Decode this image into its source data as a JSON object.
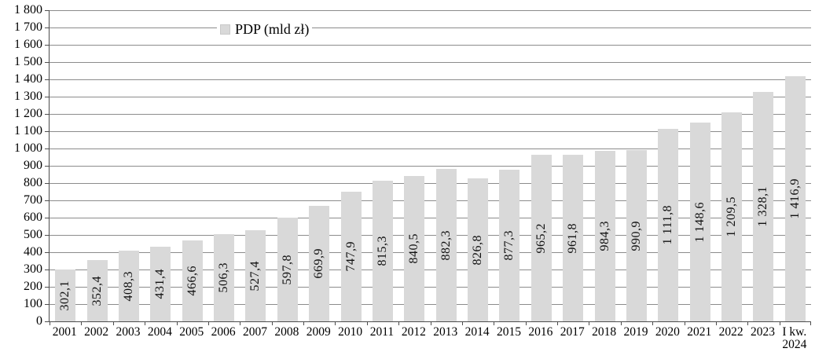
{
  "legend": {
    "label": "PDP (mld zł)"
  },
  "chart_data": {
    "type": "bar",
    "title": "",
    "legend": "PDP (mld zł)",
    "legend_position": "inside-top-left",
    "grid": true,
    "categories": [
      "2001",
      "2002",
      "2003",
      "2004",
      "2005",
      "2006",
      "2007",
      "2008",
      "2009",
      "2010",
      "2011",
      "2012",
      "2013",
      "2014",
      "2015",
      "2016",
      "2017",
      "2018",
      "2019",
      "2020",
      "2021",
      "2022",
      "2023",
      "I kw.\n2024"
    ],
    "values": [
      302.1,
      352.4,
      408.3,
      431.4,
      466.6,
      506.3,
      527.4,
      597.8,
      669.9,
      747.9,
      815.3,
      840.5,
      882.3,
      826.8,
      877.3,
      965.2,
      961.8,
      984.3,
      990.9,
      1111.8,
      1148.6,
      1209.5,
      1328.1,
      1416.9
    ],
    "bar_labels": [
      "302,1",
      "352,4",
      "408,3",
      "431,4",
      "466,6",
      "506,3",
      "527,4",
      "597,8",
      "669,9",
      "747,9",
      "815,3",
      "840,5",
      "882,3",
      "826,8",
      "877,3",
      "965,2",
      "961,8",
      "984,3",
      "990,9",
      "1 111,8",
      "1 148,6",
      "1 209,5",
      "1 328,1",
      "1 416,9"
    ],
    "xlabel": "",
    "ylabel": "",
    "ylim": [
      0,
      1800
    ],
    "y_tick_step": 100,
    "y_tick_labels": [
      "0",
      "100",
      "200",
      "300",
      "400",
      "500",
      "600",
      "700",
      "800",
      "900",
      "1 000",
      "1 100",
      "1 200",
      "1 300",
      "1 400",
      "1 500",
      "1 600",
      "1 700",
      "1 800"
    ],
    "colors": {
      "bar": "#d9d9d9",
      "gridline": "#8c8c8c",
      "axis": "#4d4d4d",
      "text": "#000000"
    }
  }
}
